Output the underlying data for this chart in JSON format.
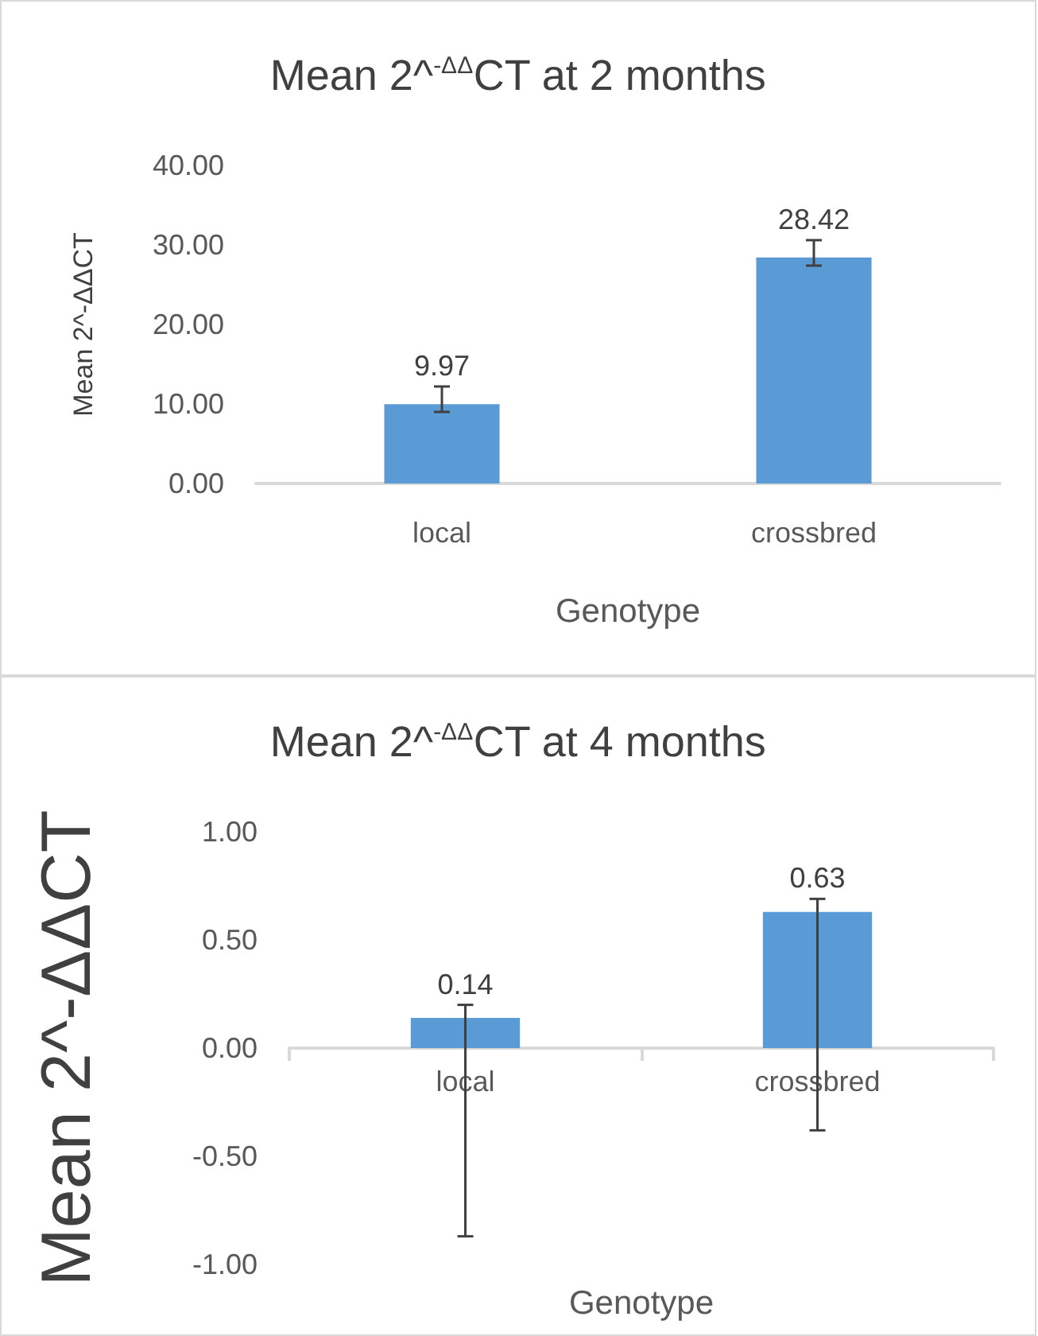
{
  "chart_data": [
    {
      "type": "bar",
      "title": "Mean 2^$^{-ΔΔ}$CT at 2 months",
      "xlabel": "Genotype",
      "ylabel": "Mean 2^-ΔΔCT",
      "categories": [
        "local",
        "crossbred"
      ],
      "values": [
        9.97,
        28.42
      ],
      "color": "#5b9bd5",
      "errors": [
        [
          9.0,
          12.2
        ],
        [
          27.4,
          30.6
        ]
      ],
      "data_labels": true,
      "ylim": [
        0,
        40
      ],
      "yticks": [
        {
          "value": 0,
          "label": "0.00"
        },
        {
          "value": 10,
          "label": "10.00"
        },
        {
          "value": 20,
          "label": "20.00"
        },
        {
          "value": 30,
          "label": "30.00"
        },
        {
          "value": 40,
          "label": "40.00"
        }
      ]
    },
    {
      "type": "bar",
      "title": "Mean 2^$^{-ΔΔ}$CT at 4 months",
      "xlabel": "Genotype",
      "ylabel": "Mean 2^-ΔΔCT",
      "categories": [
        "local",
        "crossbred"
      ],
      "values": [
        0.14,
        0.63
      ],
      "color": "#5b9bd5",
      "errors": [
        [
          -0.87,
          0.2
        ],
        [
          -0.38,
          0.69
        ]
      ],
      "data_labels": true,
      "ylim": [
        -1,
        1
      ],
      "yticks": [
        {
          "value": -1,
          "label": "-1.00"
        },
        {
          "value": -0.5,
          "label": "-0.50"
        },
        {
          "value": 0,
          "label": "0.00"
        },
        {
          "value": 0.5,
          "label": "0.50"
        },
        {
          "value": 1,
          "label": "1.00"
        }
      ]
    }
  ]
}
